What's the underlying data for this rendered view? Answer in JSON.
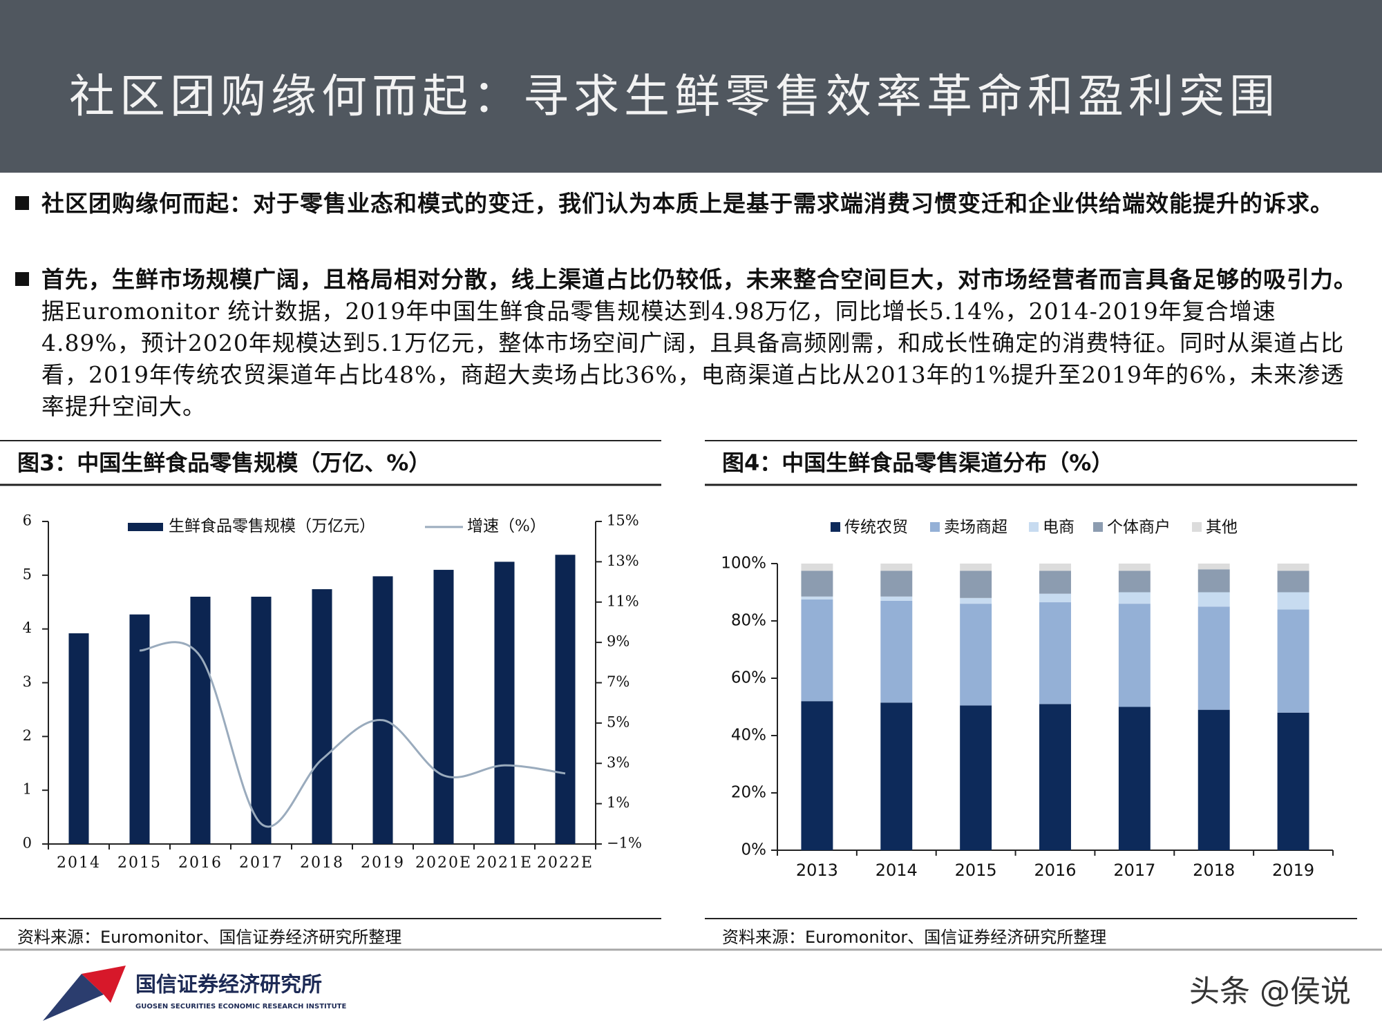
{
  "header": {
    "title": "社区团购缘何而起：寻求生鲜零售效率革命和盈利突围"
  },
  "bullets": [
    {
      "bold": "社区团购缘何而起：对于零售业态和模式的变迁，我们认为本质上是基于需求端消费习惯变迁和企业供给端效能提升的诉求。"
    },
    {
      "bold": "首先，生鲜市场规模广阔，且格局相对分散，线上渠道占比仍较低，未来整合空间巨大，对市场经营者而言具备足够的吸引力。",
      "text": "据Euromonitor 统计数据，2019年中国生鲜食品零售规模达到4.98万亿，同比增长5.14%，2014-2019年复合增速4.89%，预计2020年规模达到5.1万亿元，整体市场空间广阔，且具备高频刚需，和成长性确定的消费特征。同时从渠道占比看，2019年传统农贸渠道年占比48%，商超大卖场占比36%，电商渠道占比从2013年的1%提升至2019年的6%，未来渗透率提升空间大。"
    }
  ],
  "chart_data": [
    {
      "type": "bar",
      "title": "图3：中国生鲜食品零售规模（万亿、%）",
      "categories": [
        "2014",
        "2015",
        "2016",
        "2017",
        "2018",
        "2019",
        "2020E",
        "2021E",
        "2022E"
      ],
      "series": [
        {
          "name": "生鲜食品零售规模（万亿元）",
          "type": "bar",
          "color": "#0c2551",
          "values": [
            3.92,
            4.27,
            4.6,
            4.6,
            4.74,
            4.98,
            5.1,
            5.25,
            5.38
          ]
        },
        {
          "name": "增速（%）",
          "type": "line",
          "axis": "y2",
          "color": "#9aabbd",
          "values": [
            null,
            8.6,
            8.3,
            0,
            3.2,
            5.14,
            2.4,
            2.9,
            2.5
          ]
        }
      ],
      "ylim": [
        0,
        6
      ],
      "yticks": [
        0,
        1,
        2,
        3,
        4,
        5,
        6
      ],
      "y2lim": [
        -1,
        15
      ],
      "y2ticks": [
        {
          "value": -1,
          "label": "−1%"
        },
        {
          "value": 1,
          "label": "1%"
        },
        {
          "value": 3,
          "label": "3%"
        },
        {
          "value": 5,
          "label": "5%"
        },
        {
          "value": 7,
          "label": "7%"
        },
        {
          "value": 9,
          "label": "9%"
        },
        {
          "value": 11,
          "label": "11%"
        },
        {
          "value": 13,
          "label": "13%"
        },
        {
          "value": 15,
          "label": "15%"
        }
      ],
      "legend": "top",
      "source": "资料来源：Euromonitor、国信证券经济研究所整理"
    },
    {
      "type": "bar",
      "stacked": true,
      "title": "图4：中国生鲜食品零售渠道分布（%）",
      "categories": [
        "2013",
        "2014",
        "2015",
        "2016",
        "2017",
        "2018",
        "2019"
      ],
      "series": [
        {
          "name": "传统农贸",
          "color": "#0d2a5a",
          "values": [
            52,
            51.5,
            50.5,
            51,
            50,
            49,
            48
          ]
        },
        {
          "name": "卖场商超",
          "color": "#94b0d6",
          "values": [
            35.5,
            35.5,
            35.5,
            35.5,
            36,
            36,
            36
          ]
        },
        {
          "name": "电商",
          "color": "#c7dbf0",
          "values": [
            1,
            1.5,
            2,
            3,
            4,
            5,
            6
          ]
        },
        {
          "name": "个体商户",
          "color": "#8c9cb0",
          "values": [
            9,
            9,
            9.5,
            8,
            7.5,
            8,
            7.5
          ]
        },
        {
          "name": "其他",
          "color": "#dcdcdc",
          "values": [
            2.5,
            2.5,
            2.5,
            2.5,
            2.5,
            2,
            2.5
          ]
        }
      ],
      "ylim": [
        0,
        100
      ],
      "yticks": [
        {
          "value": 0,
          "label": "0%"
        },
        {
          "value": 20,
          "label": "20%"
        },
        {
          "value": 40,
          "label": "40%"
        },
        {
          "value": 60,
          "label": "60%"
        },
        {
          "value": 80,
          "label": "80%"
        },
        {
          "value": 100,
          "label": "100%"
        }
      ],
      "legend": "top",
      "source": "资料来源：Euromonitor、国信证券经济研究所整理"
    }
  ],
  "footer": {
    "logo_name": "国信证券经济研究所",
    "logo_subtitle": "GUOSEN SECURITIES ECONOMIC RESEARCH INSTITUTE",
    "watermark": "头条 @侯说"
  }
}
